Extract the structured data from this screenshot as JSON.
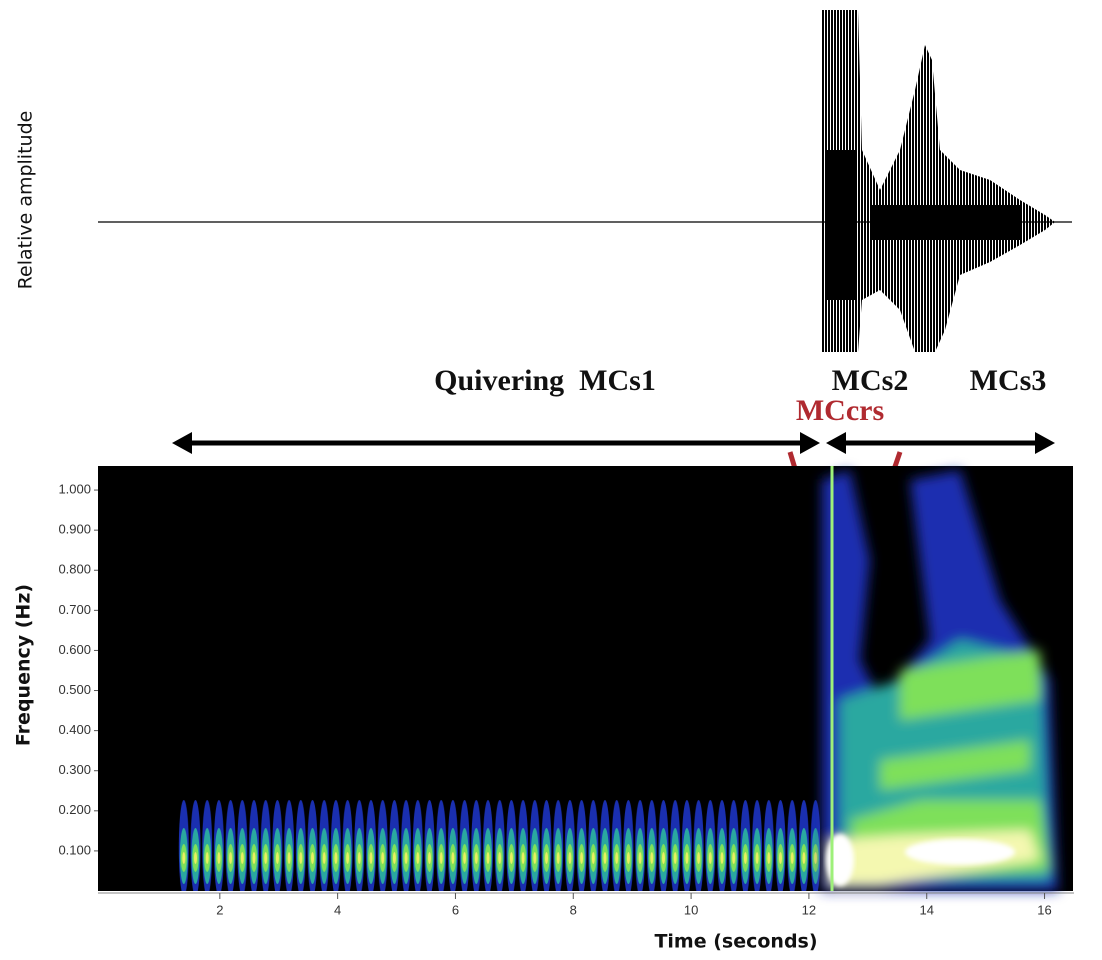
{
  "chart_data": {
    "type": "spectrogram",
    "amplitude_label": "Relative amplitude",
    "annotations": [
      "Quivering  MCs1",
      "MCs2",
      "MCs3",
      "MCcrs"
    ],
    "xlabel": "Time (seconds)",
    "ylabel": "Frequency (Hz)",
    "xlim": [
      0,
      16.5
    ],
    "xticks": [
      2,
      4,
      6,
      8,
      10,
      12,
      14,
      16
    ],
    "ylim": [
      0,
      1.06
    ],
    "yticks": [
      {
        "value": 0.1,
        "label": "0.100"
      },
      {
        "value": 0.2,
        "label": "0.200"
      },
      {
        "value": 0.3,
        "label": "0.300"
      },
      {
        "value": 0.4,
        "label": "0.400"
      },
      {
        "value": 0.5,
        "label": "0.500"
      },
      {
        "value": 0.6,
        "label": "0.600"
      },
      {
        "value": 0.7,
        "label": "0.700"
      },
      {
        "value": 0.8,
        "label": "0.800"
      },
      {
        "value": 0.9,
        "label": "0.900"
      },
      {
        "value": 1,
        "label": "1.000"
      }
    ]
  }
}
